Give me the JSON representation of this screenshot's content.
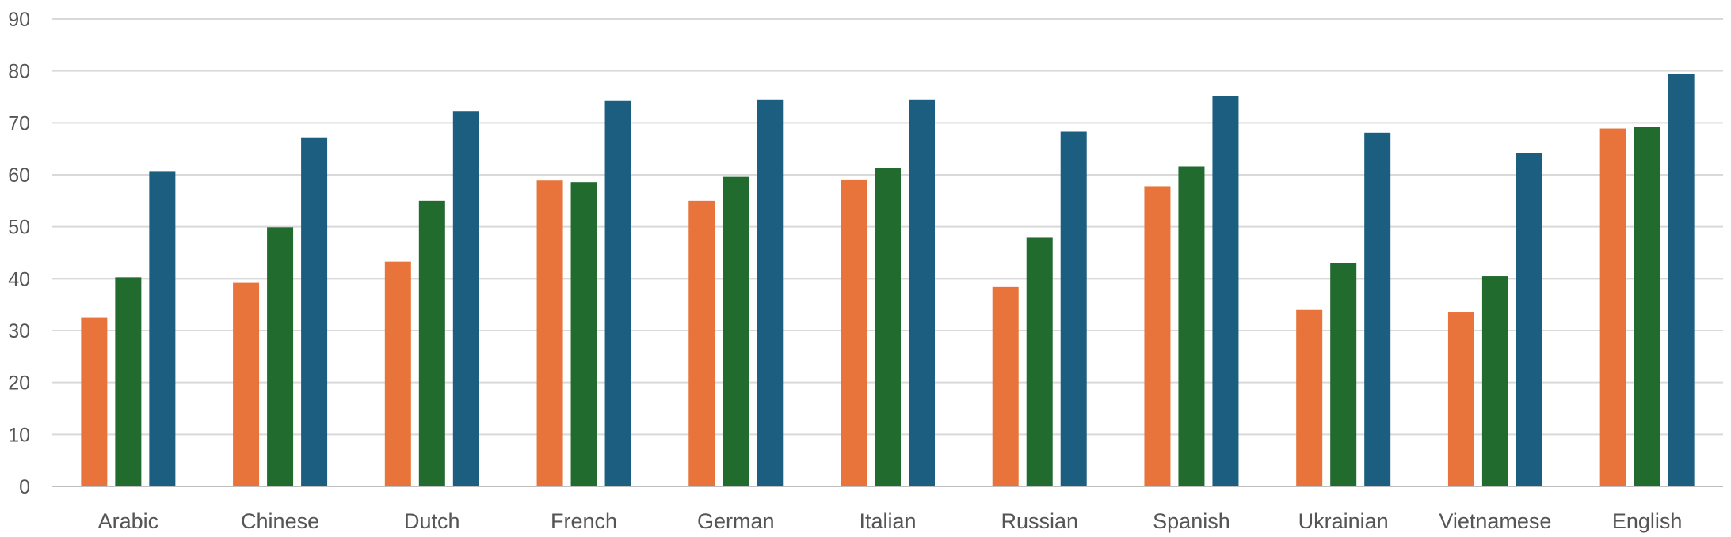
{
  "chart_data": {
    "type": "bar",
    "categories": [
      "Arabic",
      "Chinese",
      "Dutch",
      "French",
      "German",
      "Italian",
      "Russian",
      "Spanish",
      "Ukrainian",
      "Vietnamese",
      "English"
    ],
    "series": [
      {
        "color": "#E8743B",
        "values": [
          32.5,
          39.2,
          43.3,
          58.9,
          55.0,
          59.1,
          38.4,
          57.8,
          34.0,
          33.5,
          68.9
        ]
      },
      {
        "color": "#226B2E",
        "values": [
          40.3,
          49.9,
          55.0,
          58.6,
          59.6,
          61.3,
          47.9,
          61.6,
          43.0,
          40.5,
          69.2
        ]
      },
      {
        "color": "#1C5E80",
        "values": [
          60.7,
          67.2,
          72.3,
          74.2,
          74.5,
          74.5,
          68.3,
          75.1,
          68.1,
          64.2,
          79.4
        ]
      }
    ],
    "y_ticks": [
      "0",
      "10",
      "20",
      "30",
      "40",
      "50",
      "60",
      "70",
      "80",
      "90"
    ],
    "ylim": [
      0,
      90
    ],
    "grid": true,
    "legend": "none"
  }
}
